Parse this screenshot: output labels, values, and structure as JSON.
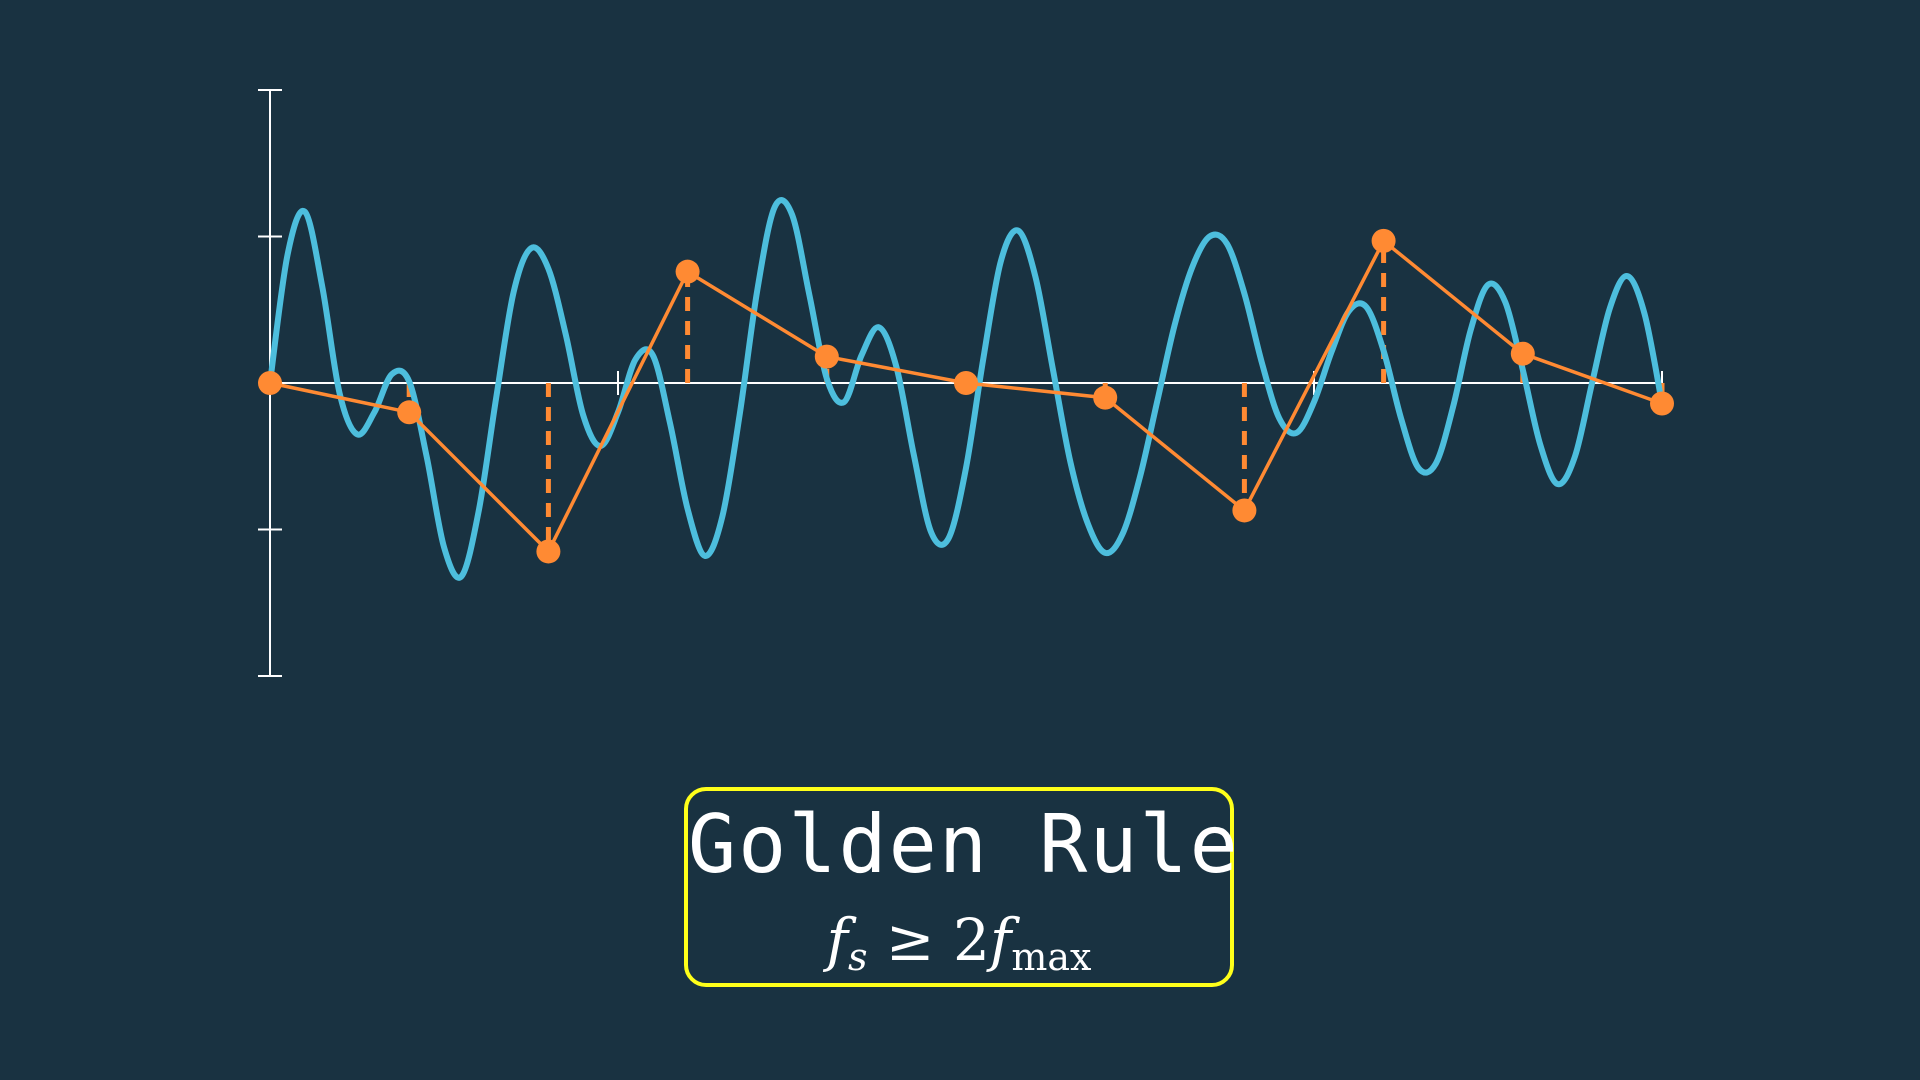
{
  "colors": {
    "background": "#193241",
    "continuous_signal": "#4dbedd",
    "sampled_signal": "#ff8a33",
    "axes": "#ffffff",
    "rule_box_border": "#ffff1a"
  },
  "chart_data": {
    "type": "line",
    "xlim": [
      0,
      10
    ],
    "ylim": [
      -2,
      2
    ],
    "y_ticks": [
      -2,
      -1,
      1,
      2
    ],
    "x_ticks": [
      2.5,
      7.5,
      10
    ],
    "series": [
      {
        "kind": "continuous",
        "x": [
          0,
          0.125,
          0.25,
          0.375,
          0.5,
          0.625,
          0.75,
          0.875,
          1,
          1.125,
          1.25,
          1.375,
          1.5,
          1.625,
          1.75,
          1.875,
          2,
          2.125,
          2.25,
          2.375,
          2.5,
          2.625,
          2.75,
          2.875,
          3,
          3.125,
          3.25,
          3.375,
          3.5,
          3.625,
          3.75,
          3.875,
          4,
          4.125,
          4.25,
          4.375,
          4.5,
          4.625,
          4.75,
          4.875,
          5,
          5.125,
          5.25,
          5.375,
          5.5,
          5.625,
          5.75,
          5.875,
          6,
          6.125,
          6.25,
          6.375,
          6.5,
          6.625,
          6.75,
          6.875,
          7,
          7.125,
          7.25,
          7.375,
          7.5,
          7.625,
          7.75,
          7.875,
          8,
          8.125,
          8.25,
          8.375,
          8.5,
          8.625,
          8.75,
          8.875,
          9,
          9.125,
          9.25,
          9.375,
          9.5,
          9.625,
          9.75,
          9.875,
          10
        ],
        "y": [
          0,
          0.87,
          1.17,
          0.66,
          -0.07,
          -0.35,
          -0.2,
          0.06,
          0.01,
          -0.5,
          -1.12,
          -1.32,
          -0.87,
          -0.1,
          0.62,
          0.92,
          0.78,
          0.33,
          -0.22,
          -0.43,
          -0.2,
          0.16,
          0.19,
          -0.28,
          -0.86,
          -1.18,
          -0.91,
          -0.21,
          0.63,
          1.2,
          1.15,
          0.6,
          0.03,
          -0.13,
          0.19,
          0.38,
          0.11,
          -0.49,
          -1.02,
          -1.06,
          -0.58,
          0.17,
          0.83,
          1.04,
          0.72,
          0.09,
          -0.54,
          -0.96,
          -1.16,
          -1.03,
          -0.64,
          -0.12,
          0.4,
          0.79,
          1.0,
          0.95,
          0.61,
          0.14,
          -0.24,
          -0.34,
          -0.13,
          0.21,
          0.49,
          0.52,
          0.22,
          -0.24,
          -0.58,
          -0.55,
          -0.16,
          0.36,
          0.67,
          0.55,
          0.09,
          -0.42,
          -0.69,
          -0.5,
          0.01,
          0.51,
          0.73,
          0.47,
          -0.14
        ]
      },
      {
        "kind": "samples",
        "x": [
          0,
          1,
          2,
          3,
          4,
          5,
          6,
          7,
          8,
          9,
          10
        ],
        "y": [
          0,
          -0.2,
          -1.15,
          0.76,
          0.18,
          0,
          -0.1,
          -0.87,
          0.97,
          0.2,
          -0.14
        ]
      }
    ]
  },
  "rule": {
    "title": "Golden Rule",
    "formula": {
      "f1": "f",
      "sub1": "s",
      "op": " ≥ 2",
      "f2": "f",
      "sub2": "max"
    }
  }
}
